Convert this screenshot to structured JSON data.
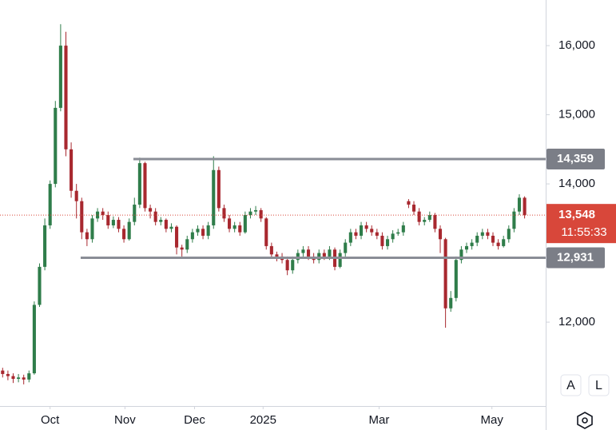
{
  "chart_data": {
    "type": "candlestick",
    "up_color": "#2f7d4a",
    "down_color": "#a8282f",
    "ylim": [
      10810,
      16660
    ],
    "yticks": [
      {
        "value": 12000,
        "label": "12,000"
      },
      {
        "value": 14000,
        "label": "14,000"
      },
      {
        "value": 15000,
        "label": "15,000"
      },
      {
        "value": 16000,
        "label": "16,000"
      }
    ],
    "xlim": [
      0,
      103.5
    ],
    "xticks": [
      {
        "value": 9,
        "label": "Oct"
      },
      {
        "value": 23.2,
        "label": "Nov"
      },
      {
        "value": 36.4,
        "label": "Dec"
      },
      {
        "value": 49.4,
        "label": "2025"
      },
      {
        "value": 71.4,
        "label": "Mar"
      },
      {
        "value": 92.8,
        "label": "May"
      }
    ],
    "open": [
      11300,
      11250,
      11220,
      11180,
      11200,
      11170,
      11260,
      12250,
      12800,
      13400,
      14000,
      15100,
      16000,
      14500,
      13900,
      13750,
      13300,
      13200,
      13500,
      13600,
      13550,
      13400,
      13480,
      13350,
      13200,
      13450,
      13700,
      14300,
      13650,
      13600,
      13450,
      13480,
      13350,
      13380,
      13080,
      13050,
      13200,
      13300,
      13350,
      13250,
      13400,
      14200,
      13650,
      13500,
      13350,
      13400,
      13300,
      13550,
      13600,
      13620,
      13500,
      13100,
      12980,
      12950,
      12900,
      12750,
      12900,
      13000,
      13050,
      12950,
      12900,
      13000,
      12950,
      13050,
      12800,
      13000,
      13150,
      13300,
      13250,
      13400,
      13350,
      13300,
      13250,
      13100,
      13200,
      13280,
      13300,
      13750,
      13700,
      13600,
      13450,
      13480,
      13550,
      13350,
      13200,
      12200,
      12350,
      12900,
      13050,
      13100,
      13150,
      13250,
      13300,
      13250,
      13150,
      13100,
      13200,
      13350,
      13600,
      13800
    ],
    "high": [
      11340,
      11300,
      11260,
      11250,
      11240,
      11300,
      12300,
      12850,
      13500,
      14050,
      15200,
      16310,
      16200,
      14600,
      14000,
      13800,
      13350,
      13550,
      13650,
      13650,
      13600,
      13530,
      13520,
      13400,
      13500,
      13800,
      14380,
      14320,
      13700,
      13650,
      13520,
      13500,
      13430,
      13400,
      13120,
      13250,
      13350,
      13400,
      13400,
      13450,
      14400,
      14250,
      13700,
      13550,
      13450,
      13450,
      13600,
      13650,
      13680,
      13650,
      13520,
      13150,
      13020,
      13000,
      12950,
      12950,
      13050,
      13100,
      13100,
      13000,
      13050,
      13050,
      13100,
      13080,
      13050,
      13200,
      13350,
      13350,
      13450,
      13450,
      13400,
      13350,
      13300,
      13250,
      13330,
      13350,
      13450,
      13780,
      13750,
      13650,
      13520,
      13600,
      13580,
      13400,
      13220,
      12450,
      12950,
      13100,
      13150,
      13200,
      13300,
      13350,
      13350,
      13300,
      13200,
      13250,
      13400,
      13650,
      13850,
      13820
    ],
    "low": [
      11200,
      11160,
      11120,
      11130,
      11100,
      11130,
      11240,
      12220,
      12750,
      13350,
      13950,
      15050,
      14400,
      13800,
      13500,
      13200,
      13100,
      13150,
      13450,
      13480,
      13350,
      13360,
      13300,
      13150,
      13180,
      13400,
      13650,
      13600,
      13500,
      13400,
      13400,
      13300,
      13300,
      12980,
      12950,
      13000,
      13150,
      13250,
      13200,
      13200,
      13350,
      13600,
      13450,
      13300,
      13300,
      13250,
      13280,
      13500,
      13550,
      13450,
      13050,
      12920,
      12880,
      12850,
      12680,
      12700,
      12850,
      12950,
      12900,
      12850,
      12850,
      12900,
      12900,
      12750,
      12780,
      12950,
      13100,
      13200,
      13200,
      13300,
      13250,
      13200,
      13050,
      13050,
      13150,
      13250,
      13250,
      13650,
      13550,
      13400,
      13400,
      13450,
      13300,
      13000,
      11920,
      12150,
      12300,
      12850,
      13000,
      13050,
      13100,
      13200,
      13200,
      13100,
      13050,
      13080,
      13150,
      13300,
      13550,
      13500
    ],
    "close": [
      11250,
      11220,
      11180,
      11200,
      11170,
      11260,
      12250,
      12800,
      13400,
      14000,
      15100,
      16000,
      14500,
      13900,
      13750,
      13300,
      13200,
      13500,
      13600,
      13550,
      13400,
      13480,
      13350,
      13200,
      13450,
      13700,
      14300,
      13650,
      13600,
      13450,
      13480,
      13350,
      13380,
      13080,
      13050,
      13200,
      13300,
      13350,
      13250,
      13400,
      14200,
      13650,
      13500,
      13350,
      13400,
      13300,
      13550,
      13600,
      13620,
      13500,
      13100,
      12980,
      12950,
      12900,
      12750,
      12900,
      13000,
      13050,
      12950,
      12900,
      13000,
      12950,
      13050,
      12800,
      13000,
      13150,
      13300,
      13250,
      13400,
      13350,
      13300,
      13250,
      13100,
      13200,
      13280,
      13300,
      13400,
      13700,
      13600,
      13450,
      13480,
      13550,
      13350,
      13200,
      12200,
      12350,
      12900,
      13050,
      13100,
      13150,
      13250,
      13300,
      13250,
      13150,
      13100,
      13200,
      13350,
      13600,
      13800,
      13548
    ],
    "horizontal_lines": [
      {
        "value": 14359,
        "label": "14,359",
        "start": 25.3
      },
      {
        "value": 12931,
        "label": "12,931",
        "start": 15.3
      }
    ],
    "last_price": {
      "value": 13548,
      "label": "13,548",
      "countdown": "11:55:33",
      "color": "#d8473a"
    },
    "buttons": [
      "A",
      "L"
    ]
  }
}
